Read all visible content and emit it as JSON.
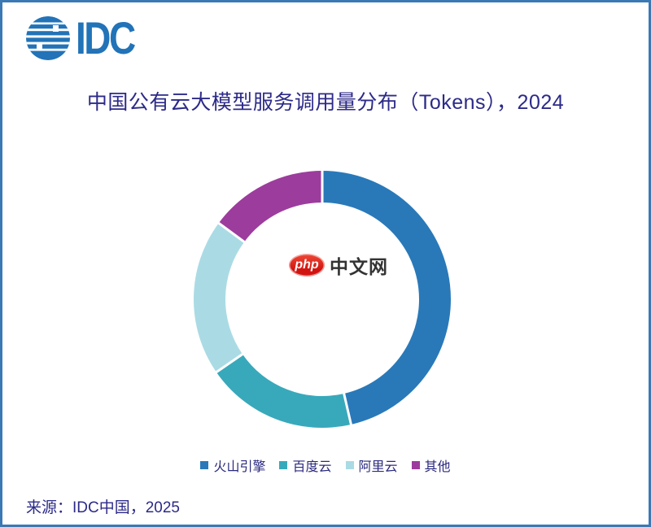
{
  "brand": {
    "logo_text": "IDC",
    "logo_color": "#2273b8"
  },
  "title": "中国公有云大模型服务调用量分布（Tokens），2024",
  "watermark": {
    "badge_text": "php",
    "site_text": "中文网",
    "badge_color": "#e0251b"
  },
  "source": "来源：IDC中国，2025",
  "colors": {
    "page_border": "#3b79b4",
    "title_text": "#2c2a88",
    "legend_text": "#2b2a7e",
    "source_text": "#2c2a88"
  },
  "chart_data": {
    "type": "pie",
    "subtype": "donut",
    "title": "中国公有云大模型服务调用量分布（Tokens），2024",
    "categories": [
      "火山引擎",
      "百度云",
      "阿里云",
      "其他"
    ],
    "values": [
      46.4,
      19.0,
      19.7,
      14.9
    ],
    "unit": "percent share (estimated from arc angles; no numeric labels shown in image)",
    "colors": [
      "#2979b9",
      "#38a9bb",
      "#aadbe4",
      "#9c3c9d"
    ],
    "start_angle_deg": 0,
    "direction": "clockwise",
    "inner_radius_ratio": 0.75,
    "separator_color": "#ffffff",
    "legend_position": "bottom",
    "legend": [
      "火山引擎",
      "百度云",
      "阿里云",
      "其他"
    ]
  }
}
